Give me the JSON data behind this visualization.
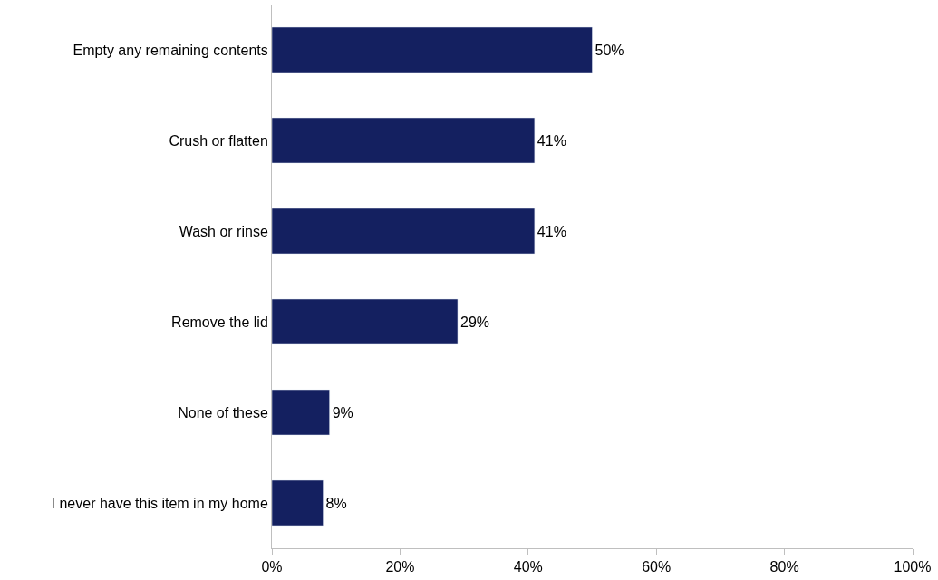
{
  "chart_data": {
    "type": "bar",
    "orientation": "horizontal",
    "categories": [
      "Empty any remaining contents",
      "Crush or flatten",
      "Wash or rinse",
      "Remove the lid",
      "None of these",
      "I never have this item in my home"
    ],
    "values": [
      50,
      41,
      41,
      29,
      9,
      8
    ],
    "value_labels": [
      "50%",
      "41%",
      "41%",
      "29%",
      "9%",
      "8%"
    ],
    "color": "#142060",
    "xlim": [
      0,
      100
    ],
    "xticks": [
      {
        "value": 0,
        "label": "0%"
      },
      {
        "value": 20,
        "label": "20%"
      },
      {
        "value": 40,
        "label": "40%"
      },
      {
        "value": 60,
        "label": "60%"
      },
      {
        "value": 80,
        "label": "80%"
      },
      {
        "value": 100,
        "label": "100%"
      }
    ],
    "legend": false
  }
}
